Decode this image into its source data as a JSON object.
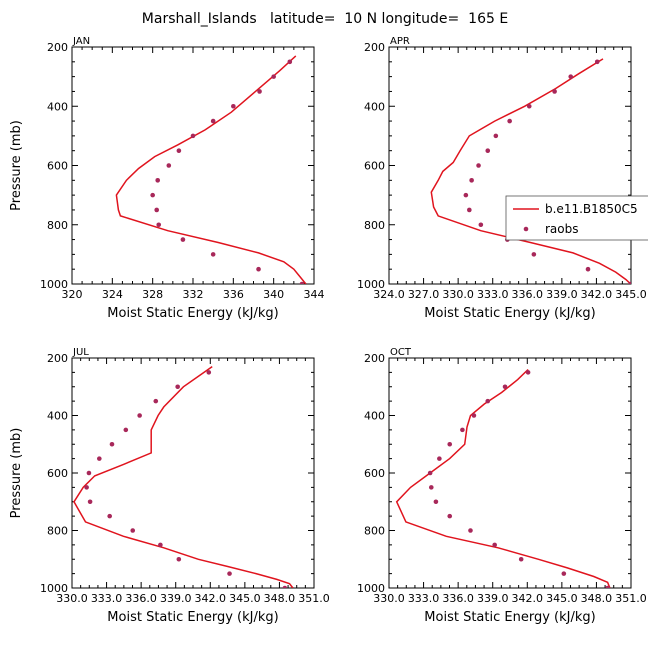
{
  "title": "Marshall_Islands   latitude=  10 N longitude=  165 E",
  "colors": {
    "model": "#e0141e",
    "obs": "#a8285a",
    "frame": "#000000"
  },
  "chart_data": [
    {
      "type": "line",
      "panel": "JAN",
      "xlabel": "Moist Static Energy (kJ/kg)",
      "ylabel": "Pressure (mb)",
      "xlim": [
        320,
        344
      ],
      "ylim": [
        1000,
        200
      ],
      "xticks": [
        320,
        324,
        328,
        332,
        336,
        340,
        344
      ],
      "xtick_labels": [
        "320",
        "324",
        "328",
        "332",
        "336",
        "340",
        "344"
      ],
      "yticks": [
        200,
        400,
        600,
        800,
        1000
      ],
      "ytick_labels": [
        "200",
        "400",
        "600",
        "800",
        "1000"
      ],
      "show_ylabel": true,
      "show_legend": false,
      "series": [
        {
          "name": "b.e11.B1850C5",
          "kind": "line",
          "points": [
            [
              342.2,
              230
            ],
            [
              340.6,
              280
            ],
            [
              338.2,
              350
            ],
            [
              335.8,
              420
            ],
            [
              333.2,
              480
            ],
            [
              330.5,
              530
            ],
            [
              328.2,
              570
            ],
            [
              326.6,
              610
            ],
            [
              325.4,
              650
            ],
            [
              324.4,
              700
            ],
            [
              324.6,
              750
            ],
            [
              324.8,
              770
            ],
            [
              329.5,
              820
            ],
            [
              334.5,
              860
            ],
            [
              338.5,
              895
            ],
            [
              341,
              925
            ],
            [
              342,
              950
            ],
            [
              342.6,
              975
            ],
            [
              343.2,
              1000
            ]
          ]
        },
        {
          "name": "raobs",
          "kind": "points",
          "points": [
            [
              341.6,
              250
            ],
            [
              340,
              300
            ],
            [
              338.6,
              350
            ],
            [
              336,
              400
            ],
            [
              334,
              450
            ],
            [
              332,
              500
            ],
            [
              330.6,
              550
            ],
            [
              329.6,
              600
            ],
            [
              328.5,
              650
            ],
            [
              328,
              700
            ],
            [
              328.4,
              750
            ],
            [
              328.6,
              800
            ],
            [
              331,
              850
            ],
            [
              334,
              900
            ],
            [
              338.5,
              950
            ],
            [
              342.8,
              1000
            ]
          ]
        }
      ]
    },
    {
      "type": "line",
      "panel": "APR",
      "xlabel": "Moist Static Energy (kJ/kg)",
      "ylabel": "",
      "xlim": [
        324.03,
        345.03
      ],
      "ylim": [
        1000,
        200
      ],
      "xticks": [
        324.03,
        327.03,
        330.03,
        333.03,
        336.03,
        339.03,
        342.03,
        345.03
      ],
      "xtick_labels": [
        "324.0",
        "327.0",
        "330.0",
        "333.0",
        "336.0",
        "339.0",
        "342.0",
        "345.0"
      ],
      "yticks": [
        200,
        400,
        600,
        800,
        1000
      ],
      "ytick_labels": [
        "200",
        "400",
        "600",
        "800",
        "1000"
      ],
      "show_ylabel": false,
      "show_legend": true,
      "legend": {
        "position": "right",
        "entries": [
          "b.e11.B1850C5",
          "raobs"
        ]
      },
      "series": [
        {
          "name": "b.e11.B1850C5",
          "kind": "line",
          "points": [
            [
              342.6,
              240
            ],
            [
              340.5,
              290
            ],
            [
              338.5,
              340
            ],
            [
              335.8,
              400
            ],
            [
              333.2,
              450
            ],
            [
              331,
              500
            ],
            [
              330.2,
              550
            ],
            [
              329.6,
              590
            ],
            [
              328.7,
              620
            ],
            [
              328.3,
              650
            ],
            [
              327.7,
              690
            ],
            [
              327.9,
              740
            ],
            [
              328.3,
              770
            ],
            [
              332,
              820
            ],
            [
              336.3,
              860
            ],
            [
              340,
              895
            ],
            [
              342.3,
              930
            ],
            [
              343.7,
              960
            ],
            [
              344.6,
              985
            ],
            [
              345,
              1000
            ]
          ]
        },
        {
          "name": "raobs",
          "kind": "points",
          "points": [
            [
              342.1,
              250
            ],
            [
              339.8,
              300
            ],
            [
              338.4,
              350
            ],
            [
              336.2,
              400
            ],
            [
              334.5,
              450
            ],
            [
              333.3,
              500
            ],
            [
              332.6,
              550
            ],
            [
              331.8,
              600
            ],
            [
              331.2,
              650
            ],
            [
              330.7,
              700
            ],
            [
              331,
              750
            ],
            [
              332,
              800
            ],
            [
              334.3,
              850
            ],
            [
              336.6,
              900
            ],
            [
              341.3,
              950
            ],
            [
              345,
              1000
            ]
          ]
        }
      ]
    },
    {
      "type": "line",
      "panel": "JUL",
      "xlabel": "Moist Static Energy (kJ/kg)",
      "ylabel": "Pressure (mb)",
      "xlim": [
        330.03,
        351.03
      ],
      "ylim": [
        1000,
        200
      ],
      "xticks": [
        330.03,
        333.03,
        336.03,
        339.03,
        342.03,
        345.03,
        348.03,
        351.03
      ],
      "xtick_labels": [
        "330.0",
        "333.0",
        "336.0",
        "339.0",
        "342.0",
        "345.0",
        "348.0",
        "351.0"
      ],
      "yticks": [
        200,
        400,
        600,
        800,
        1000
      ],
      "ytick_labels": [
        "200",
        "400",
        "600",
        "800",
        "1000"
      ],
      "show_ylabel": true,
      "show_legend": false,
      "series": [
        {
          "name": "b.e11.B1850C5",
          "kind": "line",
          "points": [
            [
              342.2,
              230
            ],
            [
              339.7,
              300
            ],
            [
              338,
              370
            ],
            [
              337.5,
              400
            ],
            [
              336.9,
              450
            ],
            [
              336.9,
              530
            ],
            [
              336.9,
              530
            ],
            [
              334.5,
              570
            ],
            [
              332,
              610
            ],
            [
              331,
              650
            ],
            [
              330.2,
              700
            ],
            [
              331.2,
              770
            ],
            [
              334.5,
              820
            ],
            [
              338,
              860
            ],
            [
              341,
              900
            ],
            [
              343.5,
              925
            ],
            [
              346,
              950
            ],
            [
              347.8,
              970
            ],
            [
              348.9,
              985
            ],
            [
              349.2,
              1000
            ]
          ]
        },
        {
          "name": "raobs",
          "kind": "points",
          "points": [
            [
              341.9,
              250
            ],
            [
              339.2,
              300
            ],
            [
              337.3,
              350
            ],
            [
              335.9,
              400
            ],
            [
              334.7,
              450
            ],
            [
              333.5,
              500
            ],
            [
              332.4,
              550
            ],
            [
              331.5,
              600
            ],
            [
              331.3,
              650
            ],
            [
              331.6,
              700
            ],
            [
              333.3,
              750
            ],
            [
              335.3,
              800
            ],
            [
              337.7,
              850
            ],
            [
              339.3,
              900
            ],
            [
              343.7,
              950
            ],
            [
              348.5,
              1000
            ]
          ]
        }
      ]
    },
    {
      "type": "line",
      "panel": "OCT",
      "xlabel": "Moist Static Energy (kJ/kg)",
      "ylabel": "",
      "xlim": [
        330.03,
        351.03
      ],
      "ylim": [
        1000,
        200
      ],
      "xticks": [
        330.03,
        333.03,
        336.03,
        339.03,
        342.03,
        345.03,
        348.03,
        351.03
      ],
      "xtick_labels": [
        "330.0",
        "333.0",
        "336.0",
        "339.0",
        "342.0",
        "345.0",
        "348.0",
        "351.0"
      ],
      "yticks": [
        200,
        400,
        600,
        800,
        1000
      ],
      "ytick_labels": [
        "200",
        "400",
        "600",
        "800",
        "1000"
      ],
      "show_ylabel": false,
      "show_legend": false,
      "series": [
        {
          "name": "b.e11.B1850C5",
          "kind": "line",
          "points": [
            [
              342.1,
              240
            ],
            [
              341.2,
              275
            ],
            [
              339.8,
              320
            ],
            [
              338.3,
              360
            ],
            [
              337.1,
              400
            ],
            [
              336.8,
              440
            ],
            [
              336.6,
              500
            ],
            [
              335.3,
              550
            ],
            [
              333.6,
              600
            ],
            [
              331.9,
              650
            ],
            [
              330.7,
              700
            ],
            [
              331.5,
              770
            ],
            [
              335,
              820
            ],
            [
              339.5,
              860
            ],
            [
              343,
              900
            ],
            [
              345.5,
              930
            ],
            [
              347.8,
              960
            ],
            [
              349,
              980
            ],
            [
              349.2,
              1000
            ]
          ]
        },
        {
          "name": "raobs",
          "kind": "points",
          "points": [
            [
              342.1,
              250
            ],
            [
              340.1,
              300
            ],
            [
              338.6,
              350
            ],
            [
              337.4,
              400
            ],
            [
              336.4,
              450
            ],
            [
              335.3,
              500
            ],
            [
              334.4,
              550
            ],
            [
              333.6,
              600
            ],
            [
              333.7,
              650
            ],
            [
              334.1,
              700
            ],
            [
              335.3,
              750
            ],
            [
              337.1,
              800
            ],
            [
              339.2,
              850
            ],
            [
              341.5,
              900
            ],
            [
              345.2,
              950
            ],
            [
              349,
              1000
            ]
          ]
        }
      ]
    }
  ]
}
